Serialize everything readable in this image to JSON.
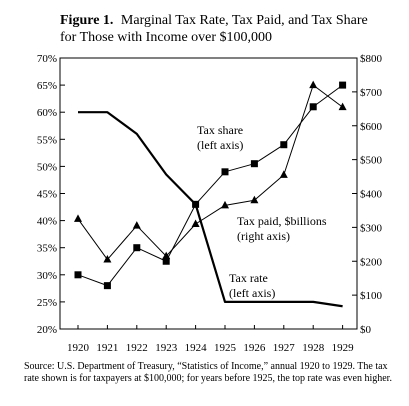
{
  "chart_data": {
    "type": "line",
    "title_bold": "Figure 1.",
    "title_rest": "Marginal Tax Rate, Tax Paid, and Tax Share",
    "title_line2": "for Those with Income over $100,000",
    "categories": [
      "1920",
      "1921",
      "1922",
      "1923",
      "1924",
      "1925",
      "1926",
      "1927",
      "1928",
      "1929"
    ],
    "left_axis": {
      "ylim": [
        20,
        70
      ],
      "ticks": [
        20,
        25,
        30,
        35,
        40,
        45,
        50,
        55,
        60,
        65,
        70
      ],
      "tick_labels": [
        "20%",
        "25%",
        "30%",
        "35%",
        "40%",
        "45%",
        "50%",
        "55%",
        "60%",
        "65%",
        "70%"
      ]
    },
    "right_axis": {
      "ylim": [
        0,
        800
      ],
      "ticks": [
        0,
        100,
        200,
        300,
        400,
        500,
        600,
        700,
        800
      ],
      "tick_labels": [
        "$0",
        "$100",
        "$200",
        "$300",
        "$400",
        "$500",
        "$600",
        "$700",
        "$800"
      ]
    },
    "series": [
      {
        "key": "tax_rate",
        "axis": "left",
        "marker": "none",
        "x": [
          1920,
          1921,
          1922,
          1923,
          1924,
          1924.5,
          1925,
          1926,
          1927,
          1928,
          1929
        ],
        "values": [
          60,
          60,
          56,
          48.5,
          43,
          34,
          25,
          25,
          25,
          25,
          24.2
        ]
      },
      {
        "key": "tax_share",
        "axis": "left",
        "marker": "square",
        "x": [
          1920,
          1921,
          1922,
          1923,
          1924,
          1925,
          1926,
          1927,
          1928,
          1929
        ],
        "values": [
          30,
          28,
          35,
          32.5,
          43,
          49,
          50.5,
          54,
          61,
          65
        ]
      },
      {
        "key": "tax_paid",
        "axis": "right",
        "marker": "triangle",
        "x": [
          1920,
          1921,
          1922,
          1923,
          1924,
          1925,
          1926,
          1927,
          1928,
          1929
        ],
        "values": [
          325,
          205,
          305,
          215,
          310,
          365,
          380,
          455,
          720,
          655
        ]
      }
    ],
    "annotations": [
      {
        "key": "tax-share-label",
        "lines": [
          "Tax share",
          "(left axis)"
        ]
      },
      {
        "key": "tax-paid-label",
        "lines": [
          "Tax paid, $billions",
          "(right axis)"
        ]
      },
      {
        "key": "tax-rate-label",
        "lines": [
          "Tax rate",
          "(left axis)"
        ]
      }
    ],
    "grid": false,
    "legend": "none"
  },
  "source_note": "Source: U.S. Department of Treasury, “Statistics of Income,” annual 1920 to 1929. The tax rate shown is for taxpayers at $100,000; for years before 1925, the top rate was even higher."
}
